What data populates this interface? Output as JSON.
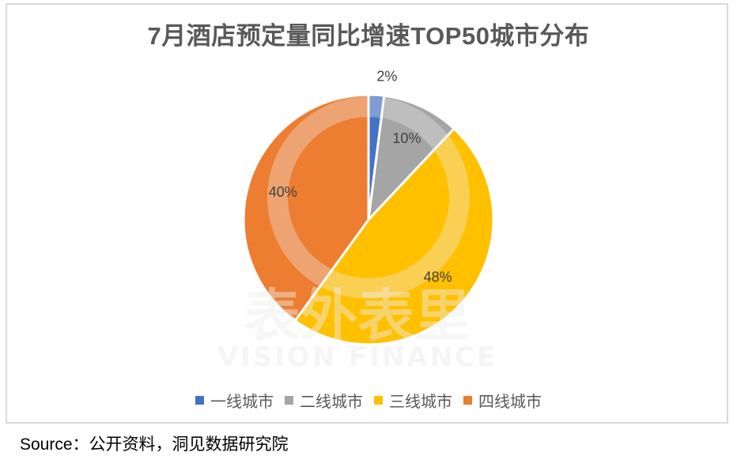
{
  "chart_data": {
    "type": "pie",
    "title": "7月酒店预定量同比增速TOP50城市分布",
    "categories": [
      "一线城市",
      "二线城市",
      "三线城市",
      "四线城市"
    ],
    "values": [
      2,
      10,
      48,
      40
    ],
    "labels": [
      "2%",
      "10%",
      "48%",
      "40%"
    ],
    "colors": [
      "#4472c4",
      "#a5a5a5",
      "#ffc000",
      "#ed7d31"
    ],
    "start_angle": "12 o'clock",
    "direction": "clockwise",
    "legend_position": "bottom"
  },
  "watermark": {
    "text_cn": "表外表里",
    "text_en": "VISION FINANCE"
  },
  "source": "Source：公开资料，洞见数据研究院"
}
